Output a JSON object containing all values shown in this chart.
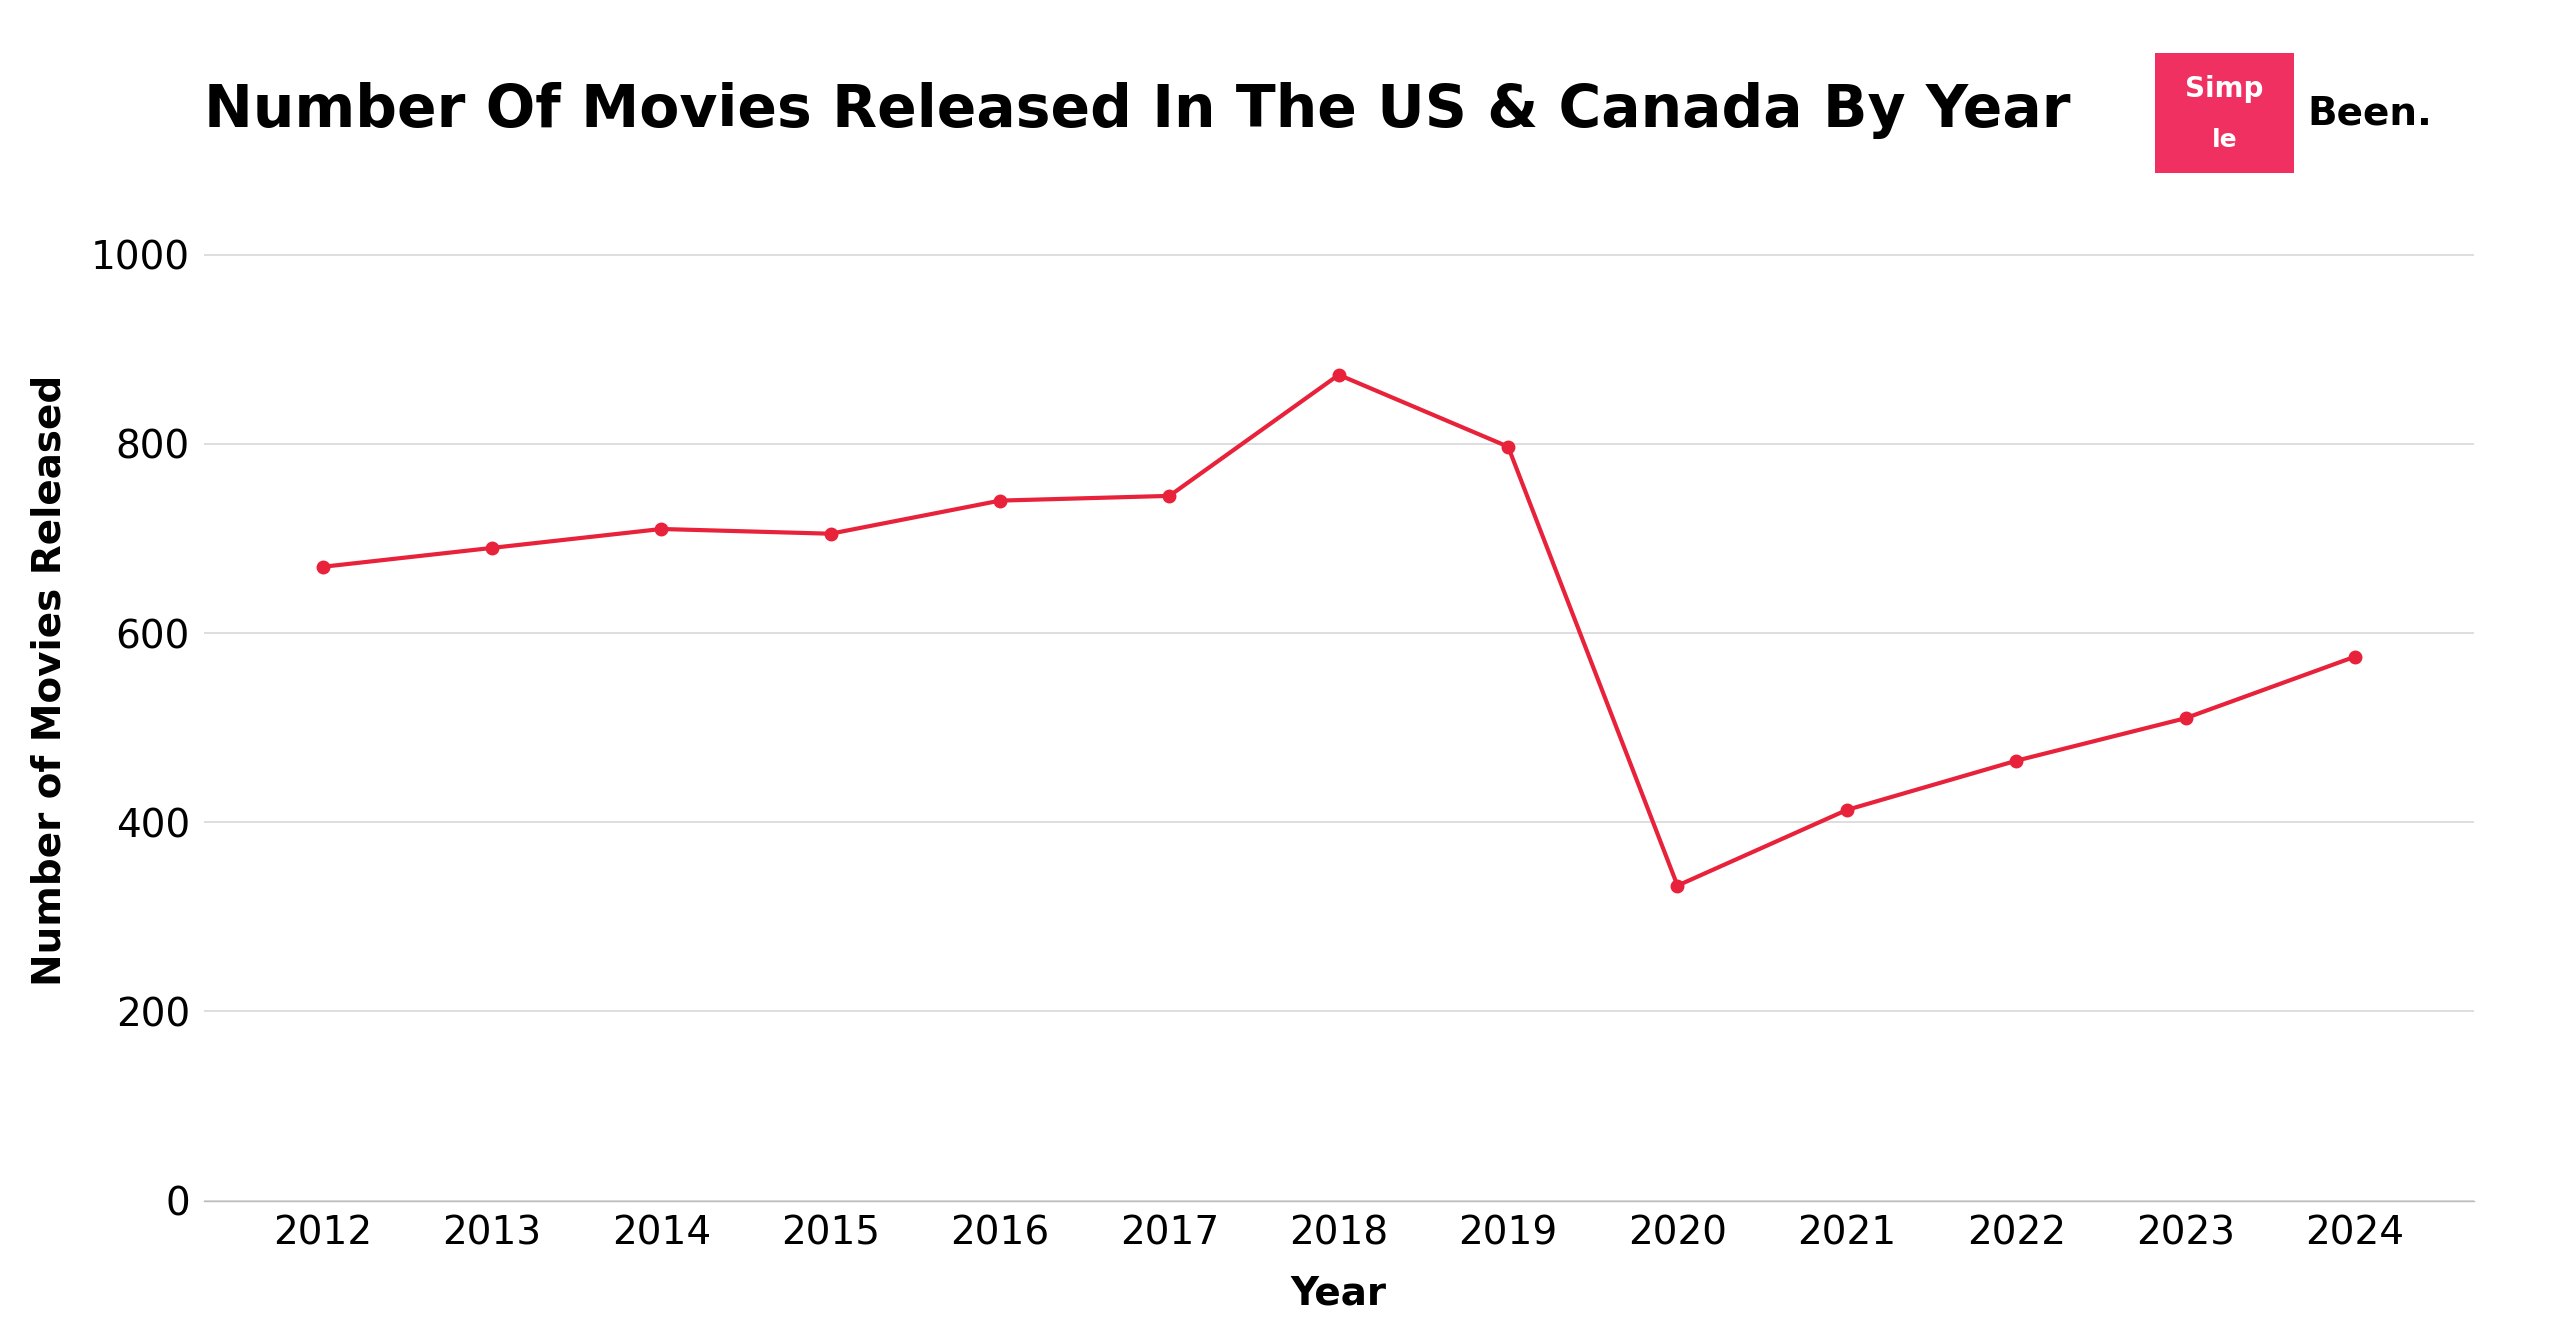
{
  "title": "Number Of Movies Released In The US & Canada By Year",
  "xlabel": "Year",
  "ylabel": "Number of Movies Released",
  "years": [
    2012,
    2013,
    2014,
    2015,
    2016,
    2017,
    2018,
    2019,
    2020,
    2021,
    2022,
    2023,
    2024
  ],
  "values": [
    670,
    690,
    710,
    705,
    740,
    745,
    873,
    797,
    333,
    413,
    465,
    510,
    575
  ],
  "line_color": "#e8223a",
  "marker_color": "#e8223a",
  "background_color": "#ffffff",
  "grid_color": "#d8d8d8",
  "title_fontsize": 42,
  "axis_label_fontsize": 28,
  "tick_fontsize": 28,
  "ylim": [
    0,
    1100
  ],
  "yticks": [
    0,
    200,
    400,
    600,
    800,
    1000
  ],
  "logo_box_color": "#f03060",
  "xlim_left": 2011.3,
  "xlim_right": 2024.7
}
